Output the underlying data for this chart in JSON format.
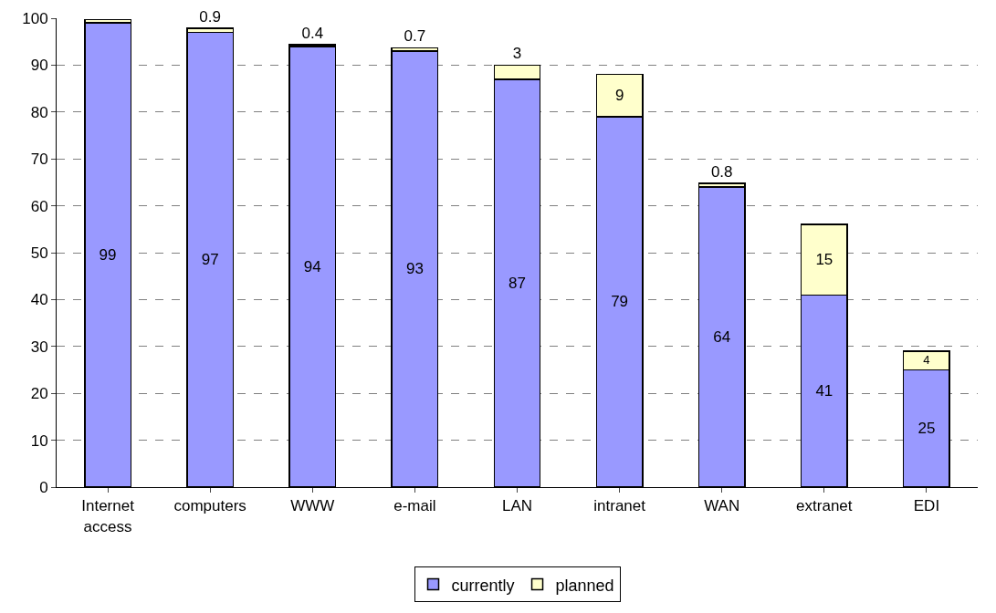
{
  "chart_data": {
    "type": "bar",
    "stacked": true,
    "categories": [
      "Internet\naccess",
      "computers",
      "WWW",
      "e-mail",
      "LAN",
      "intranet",
      "WAN",
      "extranet",
      "EDI"
    ],
    "series": [
      {
        "name": "currently",
        "color": "#9999ff",
        "values": [
          99,
          97,
          94,
          93,
          87,
          79,
          64,
          41,
          25
        ],
        "value_labels": [
          "99",
          "97",
          "94",
          "93",
          "87",
          "79",
          "64",
          "41",
          "25"
        ]
      },
      {
        "name": "planned",
        "color": "#ffffcc",
        "values": [
          0.7,
          0.9,
          0.4,
          0.7,
          3,
          9,
          0.8,
          15,
          4
        ],
        "value_labels": [
          null,
          "0.9",
          "0.4",
          "0.7",
          "3",
          "9",
          "0.8",
          "15",
          "4"
        ]
      }
    ],
    "ylim": [
      0,
      100
    ],
    "yticks": [
      0,
      10,
      20,
      30,
      40,
      50,
      60,
      70,
      80,
      90,
      100
    ],
    "grid": "y",
    "legend": "bottom"
  }
}
